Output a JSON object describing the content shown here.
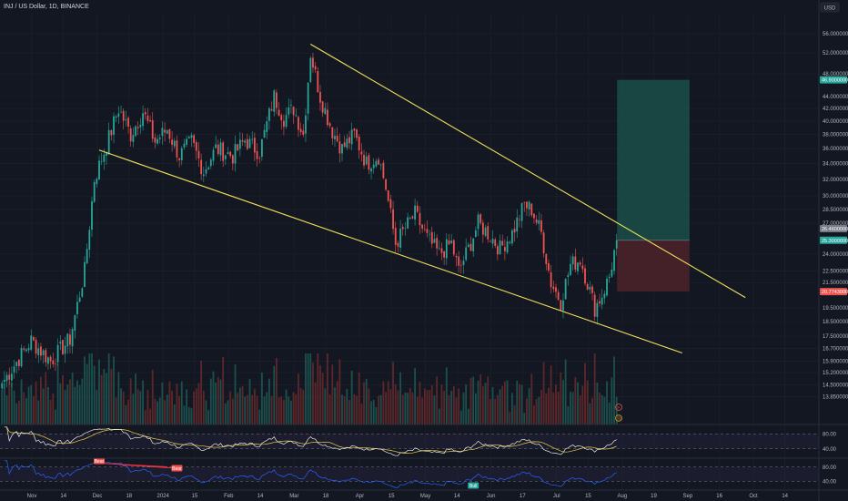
{
  "header": {
    "title": "INJ / US Dollar, 1D, BINANCE",
    "currency": "USD"
  },
  "colors": {
    "background": "#131722",
    "grid": "#1e222d",
    "up": "#26a69a",
    "down": "#ef5350",
    "trendline": "#f0e05a",
    "profit_zone": "#1b4b47",
    "loss_zone": "#4a2129",
    "rsi_line": "#e8e8e8",
    "rsi_ma": "#f2d14a",
    "rsi2_line": "#2962ff",
    "rsi2_divergence": "#f23645"
  },
  "chart_data": {
    "type": "candlestick",
    "symbol": "INJ / US Dollar",
    "interval": "1D",
    "exchange": "BINANCE",
    "ylim": [
      12.5,
      60.5
    ],
    "log_scale": true,
    "x_ticks": [
      "Nov",
      "14",
      "Dec",
      "18",
      "2024",
      "15",
      "Feb",
      "14",
      "Mar",
      "18",
      "Apr",
      "15",
      "May",
      "14",
      "Jun",
      "17",
      "Jul",
      "15",
      "Aug",
      "19",
      "Sep",
      "16",
      "Oct",
      "14"
    ],
    "y_ticks": [
      "56.0000000",
      "52.0000000",
      "48.0000000",
      "44.0000000",
      "42.0000000",
      "40.0000000",
      "38.0000000",
      "36.0000000",
      "34.0000000",
      "32.0000000",
      "30.0000000",
      "28.5000000",
      "27.0000000",
      "24.0000000",
      "22.5000000",
      "21.5000000",
      "19.5000000",
      "18.5000000",
      "17.5000000",
      "16.7000000",
      "15.9000000",
      "15.2000000",
      "14.5000000",
      "13.8500000"
    ],
    "price_tags": [
      {
        "label": "46.9000000",
        "price": 46.9,
        "color": "#26a69a"
      },
      {
        "label": "26.4600000",
        "price": 26.46,
        "color": "#787b86"
      },
      {
        "label": "25.3000000",
        "price": 25.3,
        "color": "#26a69a"
      },
      {
        "label": "20.7743000",
        "price": 20.77,
        "color": "#ef5350"
      }
    ],
    "anchors": [
      {
        "d": 0,
        "p": 14.6
      },
      {
        "d": 12,
        "p": 17.2
      },
      {
        "d": 20,
        "p": 15.9
      },
      {
        "d": 28,
        "p": 17.3
      },
      {
        "d": 34,
        "p": 22.5
      },
      {
        "d": 38,
        "p": 32.0
      },
      {
        "d": 43,
        "p": 36.5
      },
      {
        "d": 48,
        "p": 42.0
      },
      {
        "d": 53,
        "p": 38.0
      },
      {
        "d": 58,
        "p": 41.5
      },
      {
        "d": 63,
        "p": 37.0
      },
      {
        "d": 68,
        "p": 38.8
      },
      {
        "d": 73,
        "p": 35.0
      },
      {
        "d": 78,
        "p": 37.0
      },
      {
        "d": 83,
        "p": 33.0
      },
      {
        "d": 88,
        "p": 36.0
      },
      {
        "d": 95,
        "p": 35.0
      },
      {
        "d": 100,
        "p": 37.2
      },
      {
        "d": 106,
        "p": 35.5
      },
      {
        "d": 112,
        "p": 44.0
      },
      {
        "d": 116,
        "p": 40.5
      },
      {
        "d": 120,
        "p": 42.0
      },
      {
        "d": 124,
        "p": 38.0
      },
      {
        "d": 127,
        "p": 52.0
      },
      {
        "d": 131,
        "p": 44.0
      },
      {
        "d": 136,
        "p": 38.5
      },
      {
        "d": 140,
        "p": 36.0
      },
      {
        "d": 145,
        "p": 38.0
      },
      {
        "d": 150,
        "p": 34.0
      },
      {
        "d": 155,
        "p": 35.0
      },
      {
        "d": 158,
        "p": 31.0
      },
      {
        "d": 162,
        "p": 25.0
      },
      {
        "d": 166,
        "p": 26.5
      },
      {
        "d": 170,
        "p": 28.0
      },
      {
        "d": 175,
        "p": 25.5
      },
      {
        "d": 180,
        "p": 24.0
      },
      {
        "d": 185,
        "p": 25.0
      },
      {
        "d": 188,
        "p": 22.5
      },
      {
        "d": 192,
        "p": 24.5
      },
      {
        "d": 196,
        "p": 27.0
      },
      {
        "d": 200,
        "p": 26.0
      },
      {
        "d": 205,
        "p": 24.5
      },
      {
        "d": 210,
        "p": 26.0
      },
      {
        "d": 215,
        "p": 29.0
      },
      {
        "d": 218,
        "p": 28.5
      },
      {
        "d": 222,
        "p": 26.0
      },
      {
        "d": 226,
        "p": 21.5
      },
      {
        "d": 230,
        "p": 20.0
      },
      {
        "d": 234,
        "p": 23.0
      },
      {
        "d": 238,
        "p": 23.5
      },
      {
        "d": 241,
        "p": 21.5
      },
      {
        "d": 244,
        "p": 19.5
      },
      {
        "d": 247,
        "p": 20.5
      },
      {
        "d": 250,
        "p": 22.0
      },
      {
        "d": 253,
        "p": 25.3
      }
    ],
    "trendlines": [
      {
        "name": "upper",
        "from": {
          "d": 127,
          "p": 53.8
        },
        "to": {
          "d": 306,
          "p": 20.3
        }
      },
      {
        "name": "lower",
        "from": {
          "d": 40,
          "p": 35.8
        },
        "to": {
          "d": 280,
          "p": 16.4
        }
      }
    ],
    "position": {
      "entry": 25.3,
      "target": 46.9,
      "stop": 20.77,
      "start_d": 253,
      "end_d": 283
    },
    "rsi": {
      "levels": [
        "80.00",
        "40.00"
      ],
      "range": [
        20,
        100
      ]
    },
    "rsi2": {
      "levels": [
        "80.00",
        "40.00"
      ],
      "range": [
        20,
        100
      ],
      "labels": [
        "Bear",
        "Bear",
        "Bull"
      ]
    }
  }
}
